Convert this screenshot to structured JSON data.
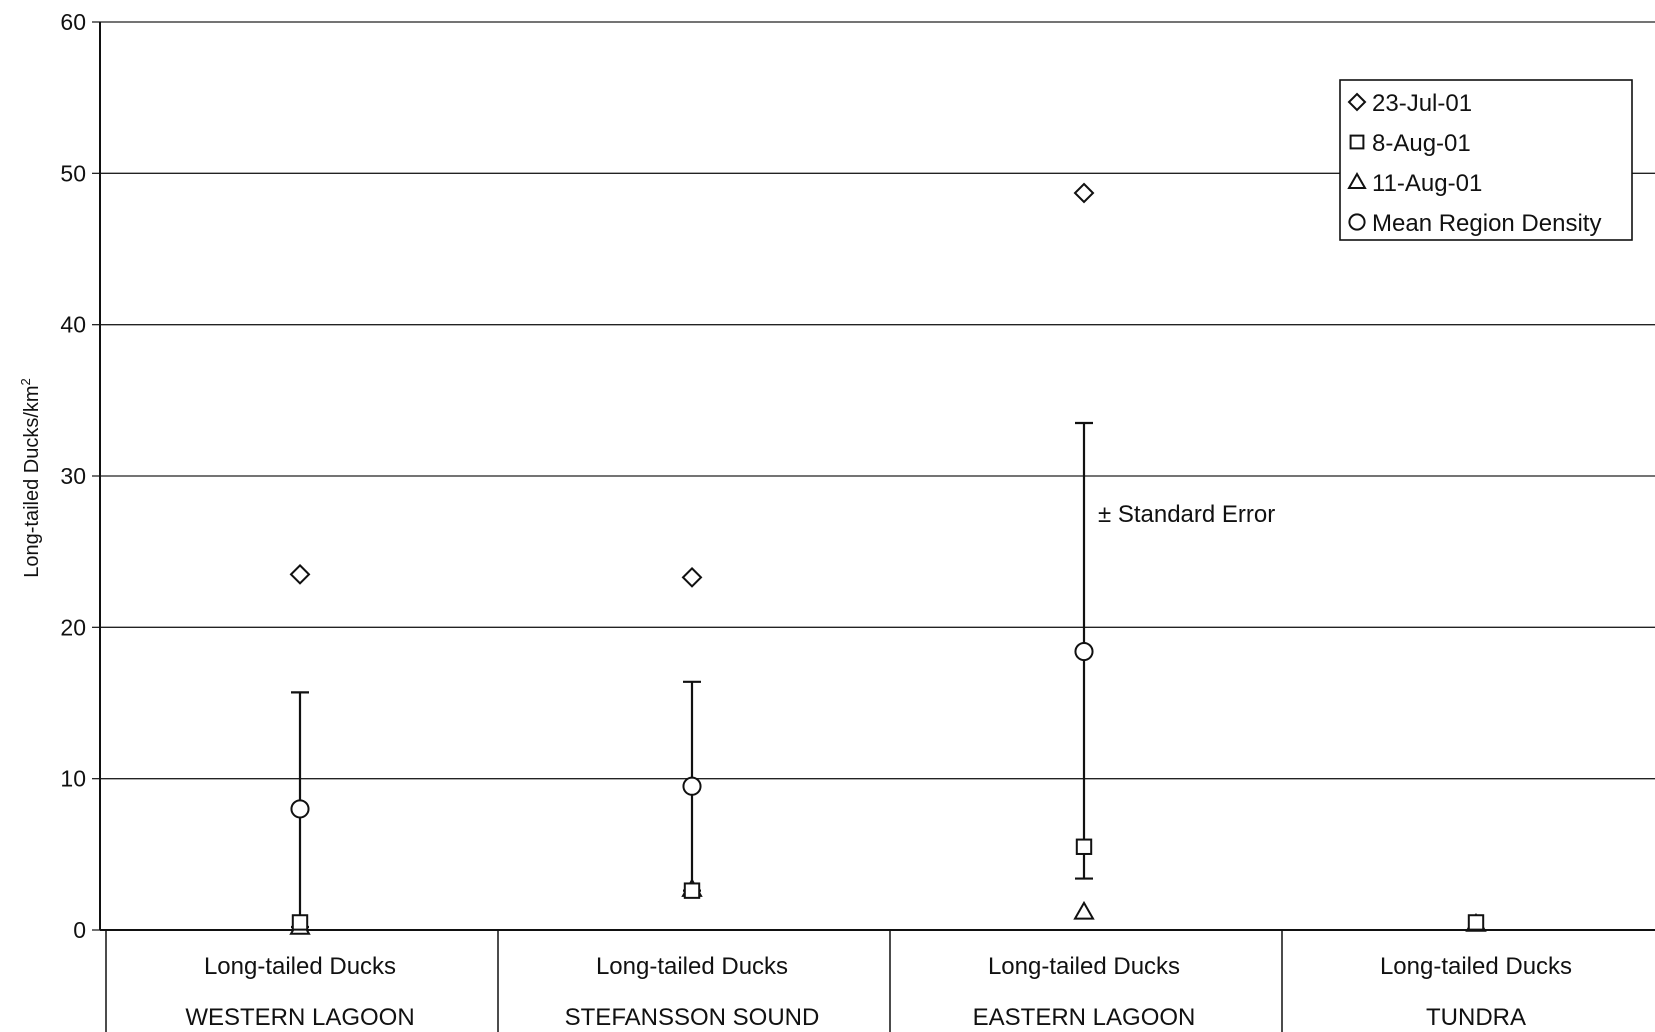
{
  "chart_data": {
    "type": "scatter",
    "ylabel": "Long-tailed Ducks/km",
    "ylabel_superscript": "2",
    "ylim": [
      0,
      60
    ],
    "yticks": [
      0,
      10,
      20,
      30,
      40,
      50,
      60
    ],
    "grid": true,
    "legend_position": "top-right",
    "categories": [
      {
        "species": "Long-tailed Ducks",
        "region": "WESTERN LAGOON"
      },
      {
        "species": "Long-tailed Ducks",
        "region": "STEFANSSON SOUND"
      },
      {
        "species": "Long-tailed Ducks",
        "region": "EASTERN LAGOON"
      },
      {
        "species": "Long-tailed Ducks",
        "region": "TUNDRA"
      }
    ],
    "series": [
      {
        "name": "23-Jul-01",
        "marker": "diamond",
        "values": [
          23.5,
          23.3,
          48.7,
          null
        ]
      },
      {
        "name": "8-Aug-01",
        "marker": "square",
        "values": [
          0.5,
          2.6,
          5.5,
          0.5
        ]
      },
      {
        "name": "11-Aug-01",
        "marker": "triangle",
        "values": [
          0.2,
          2.7,
          1.2,
          0.4
        ]
      },
      {
        "name": "Mean Region Density",
        "marker": "circle",
        "values": [
          8.0,
          9.5,
          18.4,
          null
        ]
      }
    ],
    "error_bars": [
      {
        "low": 0.2,
        "high": 15.7
      },
      {
        "low": 2.6,
        "high": 16.4
      },
      {
        "low": 3.4,
        "high": 33.5
      },
      null
    ],
    "annotation": "± Standard Error"
  }
}
